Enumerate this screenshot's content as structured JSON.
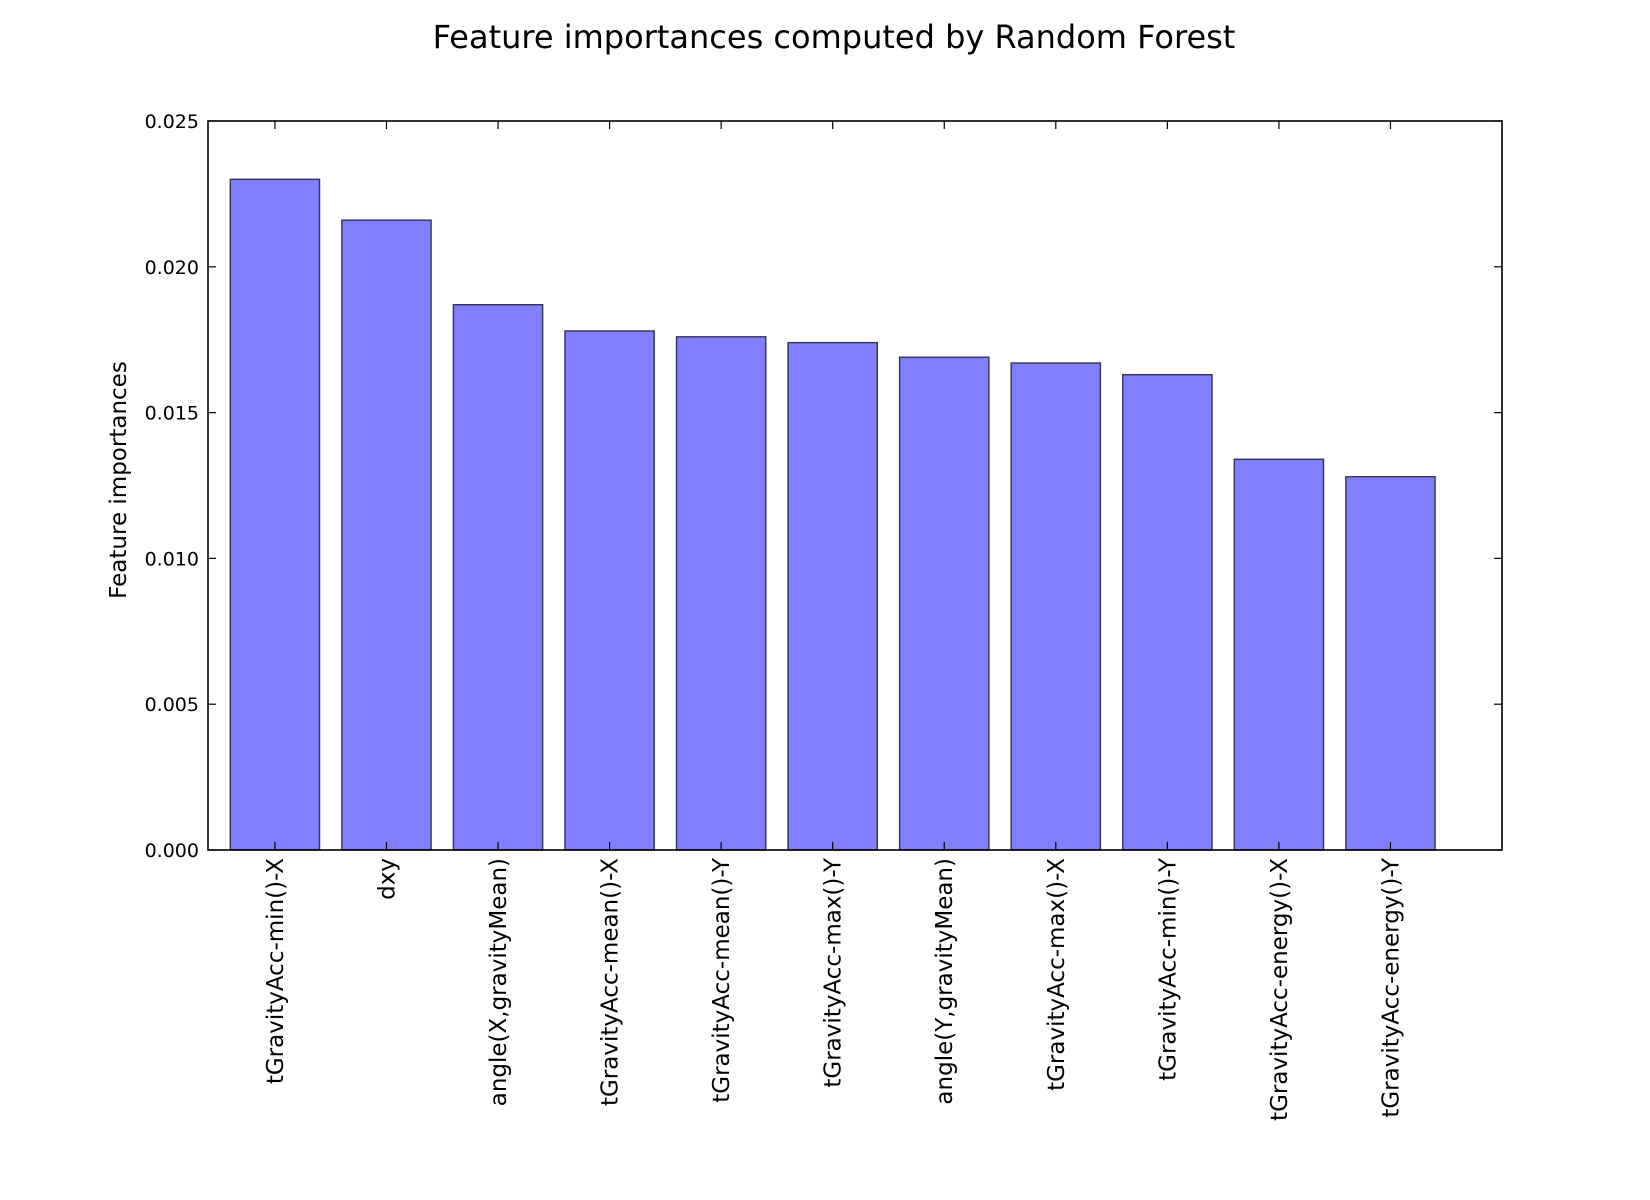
{
  "chart_data": {
    "type": "bar",
    "title": "Feature importances computed by Random Forest",
    "xlabel": "",
    "ylabel": "Feature importances",
    "categories": [
      "tGravityAcc-min()-X",
      "dxy",
      "angle(X,gravityMean)",
      "tGravityAcc-mean()-X",
      "tGravityAcc-mean()-Y",
      "tGravityAcc-max()-Y",
      "angle(Y,gravityMean)",
      "tGravityAcc-max()-X",
      "tGravityAcc-min()-Y",
      "tGravityAcc-energy()-X",
      "tGravityAcc-energy()-Y"
    ],
    "values": [
      0.023,
      0.0216,
      0.0187,
      0.0178,
      0.0176,
      0.0174,
      0.0169,
      0.0167,
      0.0163,
      0.0134,
      0.0128
    ],
    "ylim": [
      0,
      0.025
    ],
    "yticks": [
      "0.000",
      "0.005",
      "0.010",
      "0.015",
      "0.020",
      "0.025"
    ],
    "grid": false,
    "bar_color": "#8080ff",
    "bar_edge_color": "#333355"
  }
}
